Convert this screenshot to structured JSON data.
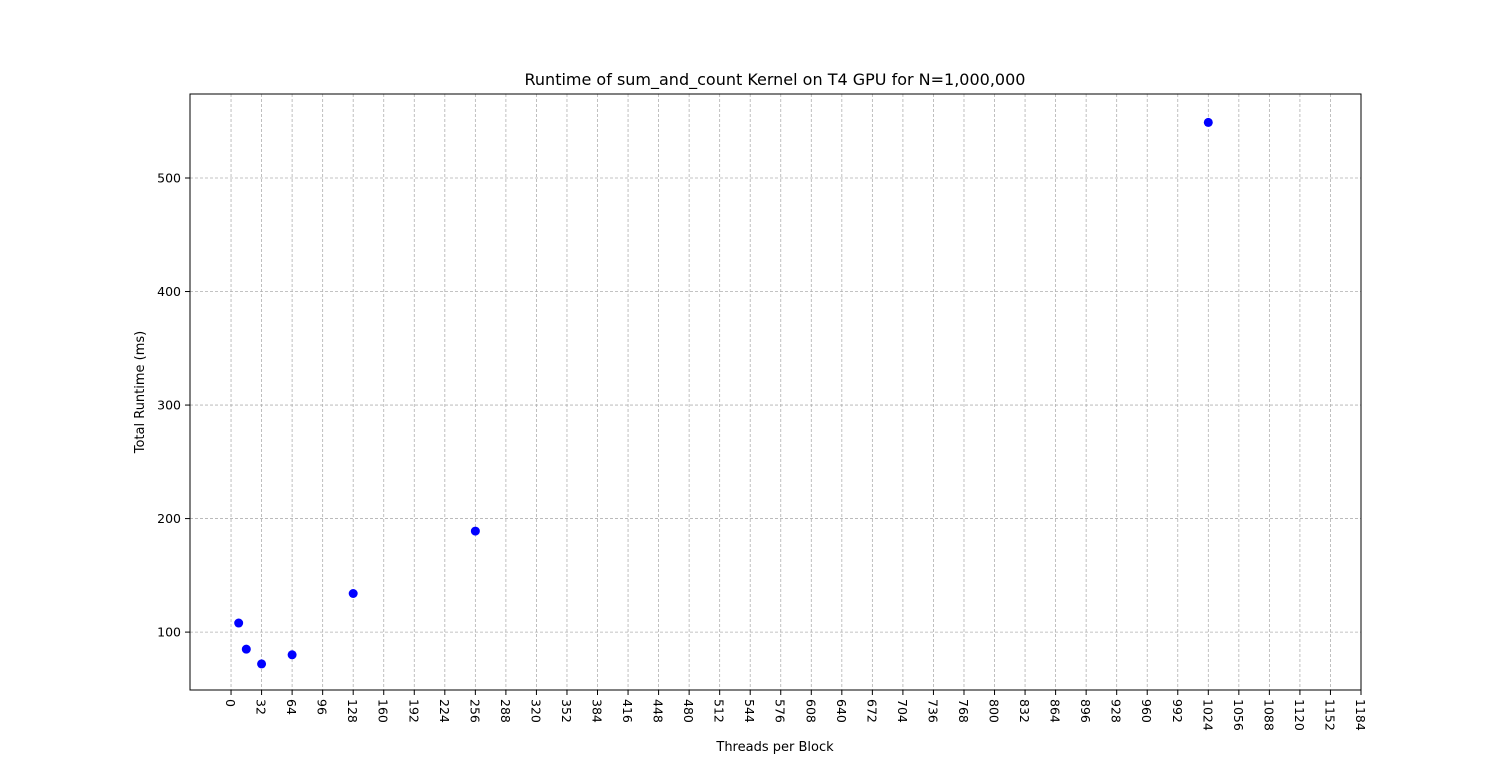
{
  "chart_data": {
    "type": "scatter",
    "title": "Runtime of sum_and_count Kernel on T4 GPU for N=1,000,000",
    "xlabel": "Threads per Block",
    "ylabel": "Total Runtime (ms)",
    "x": [
      8,
      16,
      32,
      64,
      128,
      256,
      1024
    ],
    "y": [
      108,
      85,
      72,
      80,
      134,
      189,
      549
    ],
    "xlim": [
      -43,
      1184
    ],
    "ylim": [
      49,
      574
    ],
    "xticks": [
      0,
      32,
      64,
      96,
      128,
      160,
      192,
      224,
      256,
      288,
      320,
      352,
      384,
      416,
      448,
      480,
      512,
      544,
      576,
      608,
      640,
      672,
      704,
      736,
      768,
      800,
      832,
      864,
      896,
      928,
      960,
      992,
      1024,
      1056,
      1088,
      1120,
      1152,
      1184
    ],
    "yticks": [
      100,
      200,
      300,
      400,
      500
    ],
    "grid": true,
    "marker_color": "#0000ff",
    "xtick_rotation": "vertical"
  }
}
